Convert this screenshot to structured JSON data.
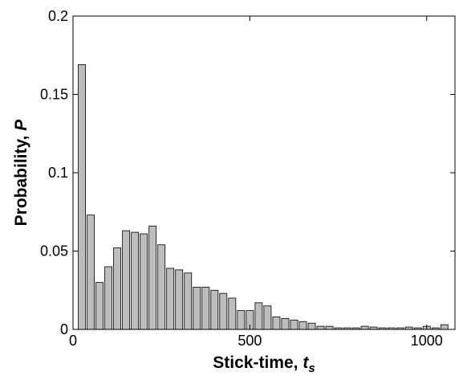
{
  "chart_data": {
    "type": "bar",
    "xlabel": "Stick-time, ",
    "xlabel_symbol": "t",
    "xlabel_subscript": "s",
    "ylabel": "Probability, ",
    "ylabel_symbol": "P",
    "xlim": [
      0,
      1080
    ],
    "ylim": [
      0,
      0.2
    ],
    "xticks": [
      0,
      500,
      1000
    ],
    "xtick_labels": [
      "0",
      "500",
      "1000"
    ],
    "yticks": [
      0,
      0.05,
      0.1,
      0.15,
      0.2
    ],
    "ytick_labels": [
      "0",
      "0.05",
      "0.1",
      "0.15",
      "0.2"
    ],
    "bin_width": 25,
    "x": [
      25,
      50,
      75,
      100,
      125,
      150,
      175,
      200,
      225,
      250,
      275,
      300,
      325,
      350,
      375,
      400,
      425,
      450,
      475,
      500,
      525,
      550,
      575,
      600,
      625,
      650,
      675,
      700,
      725,
      750,
      775,
      800,
      825,
      850,
      875,
      900,
      925,
      950,
      975,
      1000,
      1025,
      1050
    ],
    "values": [
      0.169,
      0.073,
      0.03,
      0.04,
      0.052,
      0.063,
      0.062,
      0.061,
      0.066,
      0.054,
      0.039,
      0.038,
      0.036,
      0.027,
      0.027,
      0.025,
      0.023,
      0.02,
      0.012,
      0.012,
      0.017,
      0.015,
      0.008,
      0.007,
      0.006,
      0.005,
      0.004,
      0.002,
      0.002,
      0.001,
      0.001,
      0.001,
      0.002,
      0.0015,
      0.001,
      0.001,
      0.001,
      0.0015,
      0.001,
      0.002,
      0.001,
      0.003
    ],
    "bar_color": "#bdbdbd",
    "bar_edge_color": "#000000",
    "grid": false,
    "legend": "none"
  }
}
